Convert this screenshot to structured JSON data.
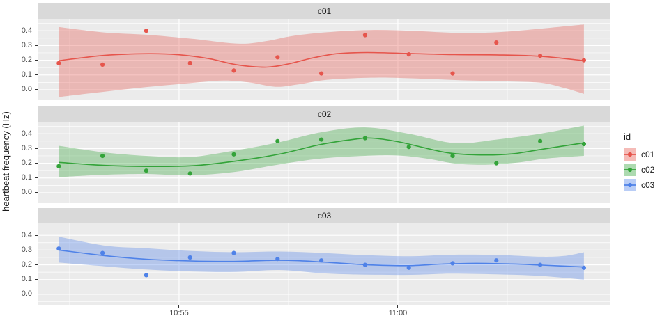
{
  "chart_data": {
    "type": "scatter",
    "subtype": "faceted time-series scatter with loess smooth line and confidence band (ggplot style)",
    "y": {
      "title": "heartbeat frequency (Hz)",
      "ticks": [
        {
          "label": "0.0",
          "value": 0.0
        },
        {
          "label": "0.1",
          "value": 0.1
        },
        {
          "label": "0.2",
          "value": 0.2
        },
        {
          "label": "0.3",
          "value": 0.3
        },
        {
          "label": "0.4",
          "value": 0.4
        }
      ],
      "minor_values": [
        -0.05,
        0.05,
        0.15,
        0.25,
        0.35,
        0.45
      ],
      "domain": [
        -0.071,
        0.481
      ]
    },
    "x": {
      "ticks": [
        {
          "label": "10:55",
          "minute": 55
        },
        {
          "label": "11:00",
          "minute": 60
        }
      ],
      "minor_minutes": [
        52.5,
        57.5,
        62.5
      ],
      "domain_minutes": [
        51.784,
        64.857
      ],
      "unit": "clock time (minutes after 10:00)"
    },
    "points_x_minutes": [
      52.25,
      53.25,
      54.25,
      55.25,
      56.25,
      57.25,
      58.25,
      59.25,
      60.25,
      61.25,
      62.25,
      63.25,
      64.25
    ],
    "facets": [
      {
        "label": "c01",
        "color": "#E6554C",
        "values": [
          0.18,
          0.17,
          0.4,
          0.18,
          0.13,
          0.22,
          0.11,
          0.37,
          0.24,
          0.11,
          0.32,
          0.23,
          0.2
        ],
        "smooth": [
          [
            52.25,
            0.197
          ],
          [
            53.3,
            0.233
          ],
          [
            54.3,
            0.244
          ],
          [
            55.0,
            0.237
          ],
          [
            55.7,
            0.21
          ],
          [
            56.3,
            0.17
          ],
          [
            57.0,
            0.153
          ],
          [
            57.5,
            0.175
          ],
          [
            58.0,
            0.212
          ],
          [
            58.6,
            0.244
          ],
          [
            59.3,
            0.252
          ],
          [
            60.2,
            0.246
          ],
          [
            61.3,
            0.238
          ],
          [
            62.25,
            0.236
          ],
          [
            63.25,
            0.227
          ],
          [
            64.25,
            0.197
          ]
        ],
        "band_upper": [
          [
            52.25,
            0.425
          ],
          [
            53.3,
            0.388
          ],
          [
            54.25,
            0.373
          ],
          [
            55.3,
            0.345
          ],
          [
            56.35,
            0.312
          ],
          [
            57.0,
            0.33
          ],
          [
            57.6,
            0.365
          ],
          [
            58.4,
            0.39
          ],
          [
            59.4,
            0.405
          ],
          [
            60.4,
            0.398
          ],
          [
            61.4,
            0.385
          ],
          [
            62.3,
            0.39
          ],
          [
            63.3,
            0.415
          ],
          [
            64.25,
            0.442
          ]
        ],
        "band_lower": [
          [
            52.25,
            -0.05
          ],
          [
            53.3,
            -0.013
          ],
          [
            54.25,
            0.018
          ],
          [
            55.25,
            0.045
          ],
          [
            56.0,
            0.062
          ],
          [
            56.6,
            0.05
          ],
          [
            57.2,
            0.02
          ],
          [
            57.7,
            0.035
          ],
          [
            58.3,
            0.065
          ],
          [
            59.0,
            0.078
          ],
          [
            59.8,
            0.082
          ],
          [
            60.8,
            0.072
          ],
          [
            61.6,
            0.063
          ],
          [
            62.4,
            0.058
          ],
          [
            63.25,
            0.048
          ],
          [
            63.8,
            0.012
          ],
          [
            64.25,
            -0.028
          ]
        ]
      },
      {
        "label": "c02",
        "color": "#33A339",
        "values": [
          0.18,
          0.25,
          0.15,
          0.13,
          0.26,
          0.35,
          0.36,
          0.37,
          0.31,
          0.25,
          0.2,
          0.35,
          0.33
        ],
        "smooth": [
          [
            52.25,
            0.206
          ],
          [
            53.3,
            0.185
          ],
          [
            54.3,
            0.178
          ],
          [
            55.3,
            0.183
          ],
          [
            56.3,
            0.215
          ],
          [
            57.3,
            0.262
          ],
          [
            58.2,
            0.325
          ],
          [
            59.0,
            0.362
          ],
          [
            59.4,
            0.37
          ],
          [
            60.0,
            0.346
          ],
          [
            60.6,
            0.305
          ],
          [
            61.2,
            0.268
          ],
          [
            61.9,
            0.256
          ],
          [
            62.6,
            0.263
          ],
          [
            63.3,
            0.295
          ],
          [
            64.25,
            0.338
          ]
        ],
        "band_upper": [
          [
            52.25,
            0.318
          ],
          [
            53.3,
            0.273
          ],
          [
            54.25,
            0.25
          ],
          [
            55.25,
            0.242
          ],
          [
            56.25,
            0.285
          ],
          [
            57.25,
            0.34
          ],
          [
            58.25,
            0.41
          ],
          [
            59.25,
            0.443
          ],
          [
            60.25,
            0.4
          ],
          [
            61.3,
            0.336
          ],
          [
            62.25,
            0.36
          ],
          [
            63.25,
            0.4
          ],
          [
            64.25,
            0.455
          ]
        ],
        "band_lower": [
          [
            52.25,
            0.106
          ],
          [
            53.3,
            0.122
          ],
          [
            54.25,
            0.127
          ],
          [
            55.25,
            0.118
          ],
          [
            56.25,
            0.14
          ],
          [
            57.25,
            0.19
          ],
          [
            58.25,
            0.232
          ],
          [
            59.25,
            0.25
          ],
          [
            60.0,
            0.252
          ],
          [
            60.7,
            0.23
          ],
          [
            61.3,
            0.198
          ],
          [
            62.0,
            0.19
          ],
          [
            62.7,
            0.203
          ],
          [
            63.4,
            0.232
          ],
          [
            64.25,
            0.25
          ]
        ]
      },
      {
        "label": "c03",
        "color": "#4F82E8",
        "values": [
          0.31,
          0.28,
          0.13,
          0.25,
          0.28,
          0.24,
          0.23,
          0.2,
          0.18,
          0.21,
          0.23,
          0.2,
          0.18
        ],
        "smooth": [
          [
            52.26,
            0.3
          ],
          [
            53.3,
            0.262
          ],
          [
            54.25,
            0.238
          ],
          [
            55.25,
            0.226
          ],
          [
            56.25,
            0.223
          ],
          [
            57.1,
            0.23
          ],
          [
            57.7,
            0.228
          ],
          [
            58.5,
            0.215
          ],
          [
            59.3,
            0.2
          ],
          [
            60.2,
            0.194
          ],
          [
            61.0,
            0.205
          ],
          [
            61.8,
            0.21
          ],
          [
            62.6,
            0.206
          ],
          [
            63.3,
            0.198
          ],
          [
            64.25,
            0.185
          ]
        ],
        "band_upper": [
          [
            52.26,
            0.39
          ],
          [
            53.3,
            0.33
          ],
          [
            54.25,
            0.312
          ],
          [
            55.3,
            0.293
          ],
          [
            56.3,
            0.285
          ],
          [
            57.3,
            0.29
          ],
          [
            58.3,
            0.28
          ],
          [
            59.3,
            0.265
          ],
          [
            60.3,
            0.258
          ],
          [
            61.2,
            0.268
          ],
          [
            62.25,
            0.267
          ],
          [
            63.25,
            0.255
          ],
          [
            63.8,
            0.26
          ],
          [
            64.25,
            0.285
          ]
        ],
        "band_lower": [
          [
            52.26,
            0.215
          ],
          [
            53.3,
            0.19
          ],
          [
            54.25,
            0.168
          ],
          [
            55.3,
            0.155
          ],
          [
            56.3,
            0.152
          ],
          [
            57.3,
            0.165
          ],
          [
            58.3,
            0.142
          ],
          [
            59.3,
            0.133
          ],
          [
            60.3,
            0.132
          ],
          [
            61.2,
            0.14
          ],
          [
            62.25,
            0.135
          ],
          [
            63.25,
            0.125
          ],
          [
            64.25,
            0.1
          ]
        ]
      }
    ],
    "legend": {
      "title": "id",
      "items": [
        {
          "label": "c01",
          "color": "#E6554C"
        },
        {
          "label": "c02",
          "color": "#33A339"
        },
        {
          "label": "c03",
          "color": "#4F82E8"
        }
      ]
    },
    "styles": {
      "panel_bg": "#EBEBEB",
      "strip_bg": "#D9D9D9",
      "grid_color": "#FFFFFF",
      "tick_label_color": "#4D4D4D",
      "text_color": "#1A1A1A",
      "band_alpha": 0.35
    }
  }
}
